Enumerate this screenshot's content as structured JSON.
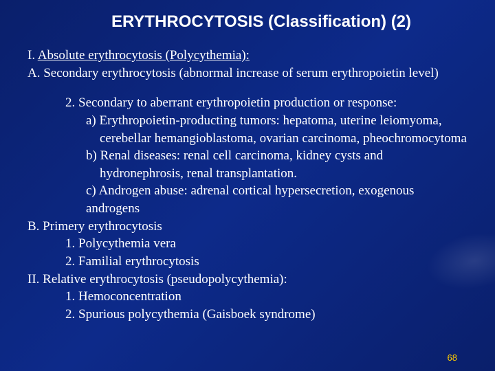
{
  "slide": {
    "background_gradient": [
      "#0a1f6b",
      "#0d2a8a",
      "#0a1f6b"
    ],
    "text_color": "#ffffff",
    "title": "ERYTHROCYTOSIS (Classification) (2)",
    "title_fontsize": 24,
    "title_font": "Arial",
    "body_font": "Times New Roman",
    "body_fontsize": 19,
    "header_lines": {
      "line1_prefix": "I. ",
      "line1_underlined": "Absolute erythrocytosis (Polycythemia):",
      "line2": "A. Secondary erythrocytosis (abnormal increase of serum erythropoietin level)"
    },
    "body_lines": [
      {
        "indent": "ind1",
        "text": "2. Secondary to aberrant erythropoietin production or response:"
      },
      {
        "indent": "ind2",
        "text": "a) Erythropoietin-producting tumors: hepatoma, uterine leiomyoma,"
      },
      {
        "indent": "ind3",
        "text": "cerebellar hemangioblastoma, ovarian carcinoma, pheochromocytoma"
      },
      {
        "indent": "ind2",
        "text": "b) Renal diseases: renal cell carcinoma, kidney cysts and"
      },
      {
        "indent": "ind3",
        "text": "hydronephrosis, renal transplantation."
      },
      {
        "indent": "ind2",
        "text": "c) Androgen abuse: adrenal cortical hypersecretion, exogenous androgens"
      },
      {
        "indent": "ind0",
        "text": "B. Primery erythrocytosis"
      },
      {
        "indent": "ind1",
        "text": "1. Polycythemia vera"
      },
      {
        "indent": "ind1",
        "text": "2. Familial erythrocytosis"
      },
      {
        "indent": "ind0",
        "text": "II. Relative erythrocytosis (pseudopolycythemia):"
      },
      {
        "indent": "ind1",
        "text": "1. Hemoconcentration"
      },
      {
        "indent": "ind1",
        "text": "2. Spurious polycythemia (Gaisboek syndrome)"
      }
    ],
    "page_number": "68",
    "page_number_color": "#ffcc00"
  }
}
